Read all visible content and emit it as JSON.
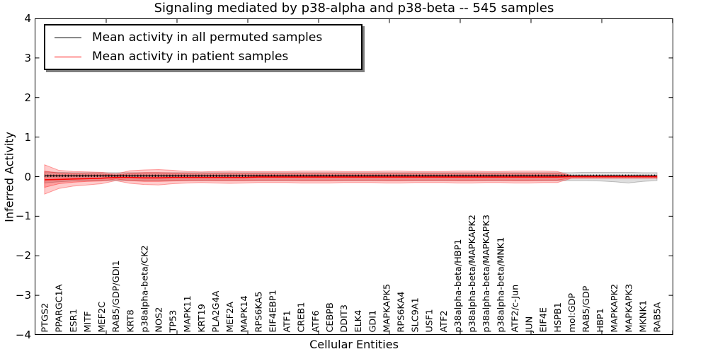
{
  "title": "Signaling mediated by p38-alpha and p38-beta -- 545 samples",
  "axes": {
    "xlabel": "Cellular Entities",
    "ylabel": "Inferred Activity",
    "yticks": [
      "4",
      "3",
      "2",
      "1",
      "0",
      "−1",
      "−2",
      "−3",
      "−4"
    ],
    "ylim": [
      -4,
      4
    ]
  },
  "legend": {
    "items": [
      {
        "label": "Mean activity in all permuted samples",
        "color": "#000000"
      },
      {
        "label": "Mean activity in patient samples",
        "color": "#ff0000"
      }
    ]
  },
  "chart_data": {
    "type": "line",
    "title": "Signaling mediated by p38-alpha and p38-beta -- 545 samples",
    "xlabel": "Cellular Entities",
    "ylabel": "Inferred Activity",
    "ylim": [
      -4,
      4
    ],
    "grid": false,
    "legend_position": "upper left",
    "categories": [
      "PTGS2",
      "PPARGC1A",
      "ESR1",
      "MITF",
      "MEF2C",
      "RAB5/GDP/GDI1",
      "KRT8",
      "p38alpha-beta/CK2",
      "NOS2",
      "TP53",
      "MAPK11",
      "KRT19",
      "PLA2G4A",
      "MEF2A",
      "MAPK14",
      "RPS6KA5",
      "EIF4EBP1",
      "ATF1",
      "CREB1",
      "ATF6",
      "CEBPB",
      "DDIT3",
      "ELK4",
      "GDI1",
      "MAPKAPK5",
      "RPS6KA4",
      "SLC9A1",
      "USF1",
      "ATF2",
      "p38alpha-beta/HBP1",
      "p38alpha-beta/MAPKAPK2",
      "p38alpha-beta/MAPKAPK3",
      "p38alpha-beta/MNK1",
      "ATF2/c-Jun",
      "JUN",
      "EIF4E",
      "HSPB1",
      "mol:GDP",
      "RAB5/GDP",
      "HBP1",
      "MAPKAPK2",
      "MAPKAPK3",
      "MKNK1",
      "RAB5A"
    ],
    "series": [
      {
        "name": "Mean activity in all permuted samples",
        "color": "#000000",
        "marker": "+",
        "values": [
          0.02,
          0.02,
          0.02,
          0.02,
          0.02,
          0.02,
          0.02,
          0.02,
          0.02,
          0.02,
          0.02,
          0.02,
          0.02,
          0.02,
          0.02,
          0.02,
          0.02,
          0.02,
          0.02,
          0.02,
          0.02,
          0.02,
          0.02,
          0.02,
          0.02,
          0.02,
          0.02,
          0.02,
          0.02,
          0.02,
          0.02,
          0.02,
          0.02,
          0.02,
          0.02,
          0.02,
          0.02,
          0.02,
          0.02,
          0.02,
          0.02,
          0.02,
          0.02,
          0.02
        ]
      },
      {
        "name": "Mean activity in patient samples",
        "color": "#ff0000",
        "marker": "none",
        "values": [
          -0.08,
          -0.07,
          -0.06,
          -0.05,
          -0.04,
          -0.02,
          -0.02,
          -0.03,
          -0.03,
          -0.02,
          -0.02,
          -0.02,
          -0.02,
          -0.02,
          -0.02,
          -0.01,
          -0.01,
          -0.01,
          -0.01,
          -0.01,
          -0.01,
          -0.01,
          -0.01,
          -0.01,
          -0.01,
          -0.01,
          -0.01,
          -0.01,
          -0.01,
          -0.01,
          -0.01,
          -0.01,
          -0.01,
          -0.01,
          -0.01,
          -0.01,
          -0.01,
          0,
          0,
          0,
          0,
          0,
          0,
          0
        ]
      }
    ],
    "bands": [
      {
        "name": "permuted-std-band",
        "color": "#000000",
        "opacity": 0.13,
        "upper": [
          0.12,
          0.11,
          0.1,
          0.1,
          0.1,
          0.1,
          0.1,
          0.1,
          0.1,
          0.1,
          0.1,
          0.1,
          0.1,
          0.1,
          0.1,
          0.1,
          0.1,
          0.1,
          0.1,
          0.1,
          0.1,
          0.1,
          0.1,
          0.1,
          0.1,
          0.1,
          0.1,
          0.1,
          0.1,
          0.1,
          0.1,
          0.1,
          0.1,
          0.1,
          0.1,
          0.1,
          0.1,
          0.1,
          0.11,
          0.11,
          0.11,
          0.11,
          0.1,
          0.1
        ],
        "lower": [
          -0.16,
          -0.13,
          -0.11,
          -0.1,
          -0.1,
          -0.1,
          -0.1,
          -0.1,
          -0.1,
          -0.1,
          -0.1,
          -0.1,
          -0.1,
          -0.1,
          -0.1,
          -0.1,
          -0.1,
          -0.1,
          -0.1,
          -0.1,
          -0.1,
          -0.1,
          -0.1,
          -0.1,
          -0.1,
          -0.1,
          -0.1,
          -0.1,
          -0.1,
          -0.1,
          -0.1,
          -0.1,
          -0.1,
          -0.1,
          -0.1,
          -0.1,
          -0.1,
          -0.1,
          -0.1,
          -0.11,
          -0.13,
          -0.16,
          -0.12,
          -0.1
        ]
      },
      {
        "name": "patient-outer-band",
        "color": "#ff0000",
        "opacity": 0.2,
        "upper": [
          0.3,
          0.16,
          0.13,
          0.12,
          0.11,
          0.07,
          0.15,
          0.17,
          0.18,
          0.16,
          0.13,
          0.12,
          0.13,
          0.14,
          0.13,
          0.13,
          0.13,
          0.13,
          0.14,
          0.14,
          0.14,
          0.13,
          0.13,
          0.13,
          0.14,
          0.14,
          0.13,
          0.13,
          0.13,
          0.14,
          0.14,
          0.13,
          0.13,
          0.14,
          0.14,
          0.14,
          0.13,
          0.03,
          0.03,
          0.03,
          0.03,
          0.03,
          0.03,
          0.03
        ],
        "lower": [
          -0.44,
          -0.3,
          -0.24,
          -0.21,
          -0.18,
          -0.1,
          -0.17,
          -0.2,
          -0.21,
          -0.18,
          -0.16,
          -0.15,
          -0.16,
          -0.17,
          -0.16,
          -0.15,
          -0.15,
          -0.15,
          -0.16,
          -0.16,
          -0.16,
          -0.15,
          -0.15,
          -0.15,
          -0.16,
          -0.16,
          -0.15,
          -0.15,
          -0.15,
          -0.16,
          -0.16,
          -0.15,
          -0.15,
          -0.16,
          -0.16,
          -0.15,
          -0.15,
          -0.04,
          -0.04,
          -0.04,
          -0.04,
          -0.04,
          -0.04,
          -0.04
        ]
      },
      {
        "name": "patient-inner-band",
        "color": "#ff0000",
        "opacity": 0.22,
        "upper": [
          0.14,
          0.09,
          0.08,
          0.07,
          0.07,
          0.04,
          0.08,
          0.1,
          0.1,
          0.09,
          0.08,
          0.07,
          0.08,
          0.08,
          0.08,
          0.08,
          0.08,
          0.08,
          0.08,
          0.08,
          0.08,
          0.08,
          0.08,
          0.08,
          0.08,
          0.08,
          0.08,
          0.08,
          0.08,
          0.08,
          0.08,
          0.08,
          0.08,
          0.08,
          0.08,
          0.08,
          0.08,
          0.02,
          0.02,
          0.02,
          0.02,
          0.02,
          0.02,
          0.02
        ],
        "lower": [
          -0.27,
          -0.18,
          -0.14,
          -0.12,
          -0.11,
          -0.06,
          -0.1,
          -0.12,
          -0.12,
          -0.11,
          -0.1,
          -0.09,
          -0.1,
          -0.1,
          -0.1,
          -0.09,
          -0.09,
          -0.09,
          -0.1,
          -0.1,
          -0.1,
          -0.09,
          -0.09,
          -0.09,
          -0.1,
          -0.1,
          -0.09,
          -0.09,
          -0.09,
          -0.1,
          -0.1,
          -0.09,
          -0.09,
          -0.1,
          -0.1,
          -0.09,
          -0.09,
          -0.03,
          -0.03,
          -0.03,
          -0.03,
          -0.03,
          -0.03,
          -0.03
        ]
      }
    ]
  }
}
